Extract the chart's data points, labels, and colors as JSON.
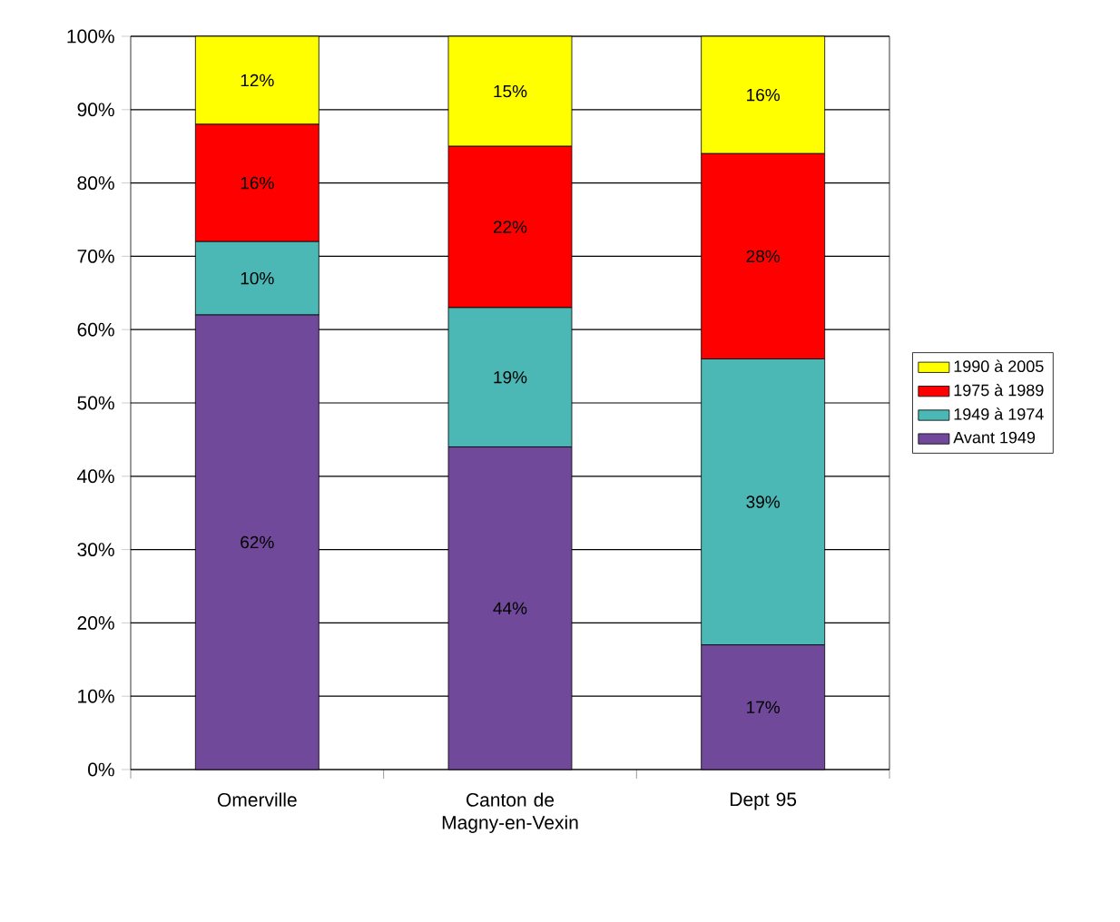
{
  "chart_data": {
    "type": "bar",
    "stacked": true,
    "categories": [
      "Omerville",
      "Canton de Magny-en-Vexin",
      "Dept 95"
    ],
    "series": [
      {
        "name": "Avant 1949",
        "color": "#71499a",
        "values": [
          62,
          44,
          17
        ],
        "value_labels": [
          "62%",
          "44%",
          "17%"
        ]
      },
      {
        "name": "1949 à 1974",
        "color": "#4bb8b5",
        "values": [
          10,
          19,
          39
        ],
        "value_labels": [
          "10%",
          "19%",
          "39%"
        ]
      },
      {
        "name": "1975 à 1989",
        "color": "#ff0000",
        "values": [
          16,
          22,
          28
        ],
        "value_labels": [
          "16%",
          "22%",
          "28%"
        ]
      },
      {
        "name": "1990 à 2005",
        "color": "#ffff00",
        "values": [
          12,
          15,
          16
        ],
        "value_labels": [
          "12%",
          "15%",
          "16%"
        ]
      }
    ],
    "ylim": [
      0,
      100
    ],
    "yticks": [
      {
        "value": 0,
        "label": "0%"
      },
      {
        "value": 10,
        "label": "10%"
      },
      {
        "value": 20,
        "label": "20%"
      },
      {
        "value": 30,
        "label": "30%"
      },
      {
        "value": 40,
        "label": "40%"
      },
      {
        "value": 50,
        "label": "50%"
      },
      {
        "value": 60,
        "label": "60%"
      },
      {
        "value": 70,
        "label": "70%"
      },
      {
        "value": 80,
        "label": "80%"
      },
      {
        "value": 90,
        "label": "90%"
      },
      {
        "value": 100,
        "label": "100%"
      }
    ],
    "grid": "y",
    "legend": "right"
  }
}
